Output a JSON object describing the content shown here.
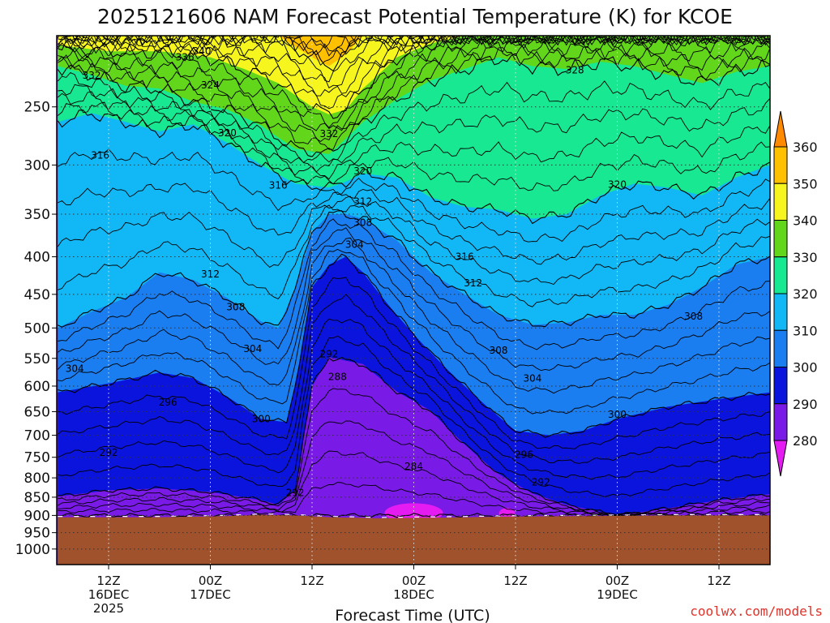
{
  "chart_data": {
    "type": "contour",
    "title": "2025121606 NAM Forecast Potential Temperature (K) for KCOE",
    "xlabel": "Forecast Time (UTC)",
    "ylabel": "",
    "y_scale": "log-pressure, inverted",
    "ylim_hPa": [
      1050,
      200
    ],
    "y_ticks": [
      "250",
      "300",
      "350",
      "400",
      "450",
      "500",
      "550",
      "600",
      "650",
      "700",
      "750",
      "800",
      "850",
      "900",
      "950",
      "1000"
    ],
    "x_ticks": [
      {
        "label": [
          "12Z",
          "16DEC",
          "2025"
        ]
      },
      {
        "label": [
          "00Z",
          "17DEC"
        ]
      },
      {
        "label": [
          "12Z"
        ]
      },
      {
        "label": [
          "00Z",
          "18DEC"
        ]
      },
      {
        "label": [
          "12Z"
        ]
      },
      {
        "label": [
          "00Z",
          "19DEC"
        ]
      },
      {
        "label": [
          "12Z"
        ]
      }
    ],
    "colorbar": {
      "levels": [
        "360",
        "350",
        "340",
        "330",
        "320",
        "310",
        "300",
        "290",
        "280"
      ],
      "colors": [
        "#ff8a00",
        "#ffc000",
        "#f6f61e",
        "#62d61a",
        "#17e891",
        "#12b8f5",
        "#1a7ef0",
        "#0a14dc",
        "#7a1ae6",
        "#e41cf2"
      ]
    },
    "contour_labels": [
      {
        "text": "340",
        "hour": 11,
        "p": 212
      },
      {
        "text": "336",
        "hour": 9,
        "p": 216
      },
      {
        "text": "332",
        "hour": -2,
        "p": 229
      },
      {
        "text": "324",
        "hour": 12,
        "p": 236
      },
      {
        "text": "320",
        "hour": 14,
        "p": 274
      },
      {
        "text": "316",
        "hour": -1,
        "p": 294
      },
      {
        "text": "316",
        "hour": 20,
        "p": 323
      },
      {
        "text": "332",
        "hour": 26,
        "p": 275
      },
      {
        "text": "320",
        "hour": 30,
        "p": 309
      },
      {
        "text": "312",
        "hour": 30,
        "p": 340
      },
      {
        "text": "308",
        "hour": 30,
        "p": 363
      },
      {
        "text": "304",
        "hour": 29,
        "p": 389
      },
      {
        "text": "328",
        "hour": 55,
        "p": 225
      },
      {
        "text": "320",
        "hour": 60,
        "p": 322
      },
      {
        "text": "316",
        "hour": 42,
        "p": 404
      },
      {
        "text": "312",
        "hour": 43,
        "p": 439
      },
      {
        "text": "312",
        "hour": 12,
        "p": 427
      },
      {
        "text": "308",
        "hour": 15,
        "p": 473
      },
      {
        "text": "304",
        "hour": 17,
        "p": 539
      },
      {
        "text": "304",
        "hour": -4,
        "p": 574
      },
      {
        "text": "296",
        "hour": 7,
        "p": 638
      },
      {
        "text": "300",
        "hour": 18,
        "p": 672
      },
      {
        "text": "292",
        "hour": 26,
        "p": 548
      },
      {
        "text": "288",
        "hour": 27,
        "p": 589
      },
      {
        "text": "308",
        "hour": 46,
        "p": 542
      },
      {
        "text": "304",
        "hour": 50,
        "p": 592
      },
      {
        "text": "300",
        "hour": 60,
        "p": 663
      },
      {
        "text": "296",
        "hour": 49,
        "p": 752
      },
      {
        "text": "292",
        "hour": 51,
        "p": 819
      },
      {
        "text": "292",
        "hour": 0,
        "p": 747
      },
      {
        "text": "292",
        "hour": 22,
        "p": 847
      },
      {
        "text": "284",
        "hour": 36,
        "p": 780
      },
      {
        "text": "308",
        "hour": 69,
        "p": 487
      }
    ],
    "credit": "coolwx.com/models"
  }
}
